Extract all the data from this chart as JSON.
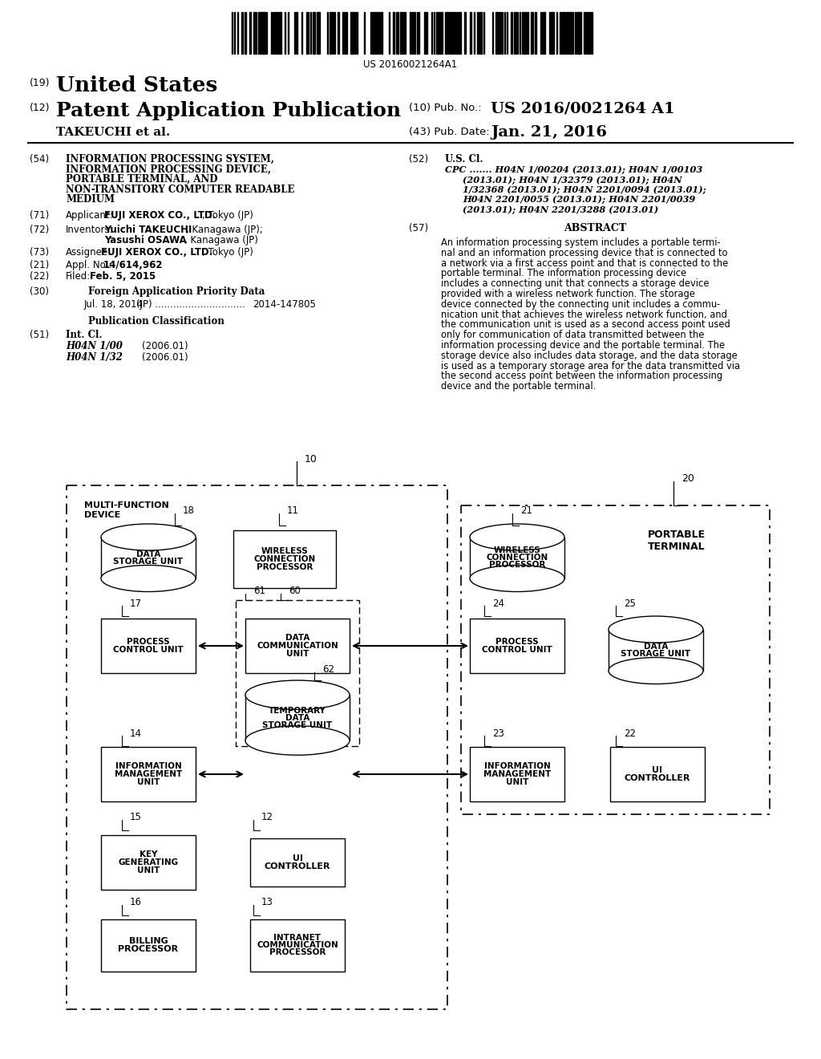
{
  "background_color": "#ffffff",
  "barcode_text": "US 20160021264A1",
  "pub_no_bold": "US 2016/0021264 A1",
  "pub_date_bold": "Jan. 21, 2016",
  "abstract_text": "An information processing system includes a portable termi-\nnal and an information processing device that is connected to\na network via a first access point and that is connected to the\nportable terminal. The information processing device\nincludes a connecting unit that connects a storage device\nprovided with a wireless network function. The storage\ndevice connected by the connecting unit includes a commu-\nnication unit that achieves the wireless network function, and\nthe communication unit is used as a second access point used\nonly for communication of data transmitted between the\ninformation processing device and the portable terminal. The\nstorage device also includes data storage, and the data storage\nis used as a temporary storage area for the data transmitted via\nthe second access point between the information processing\ndevice and the portable terminal."
}
